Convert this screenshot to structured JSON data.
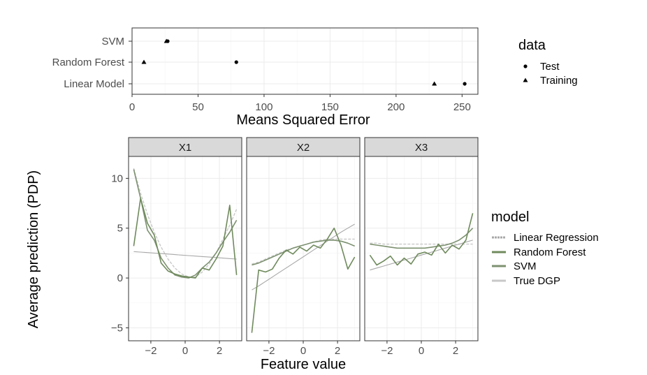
{
  "colors": {
    "Linear Regression": "#a8a8a8",
    "Random Forest": "#6f8a5c",
    "SVM": "#7d9170",
    "True DGP": "#c8c8c8"
  },
  "chart_data": [
    {
      "type": "scatter",
      "xlabel": "Means Squared Error",
      "categories": [
        "SVM",
        "Random Forest",
        "Linear Model"
      ],
      "xlim": [
        0,
        262
      ],
      "xticks": [
        0,
        50,
        100,
        150,
        200,
        250
      ],
      "legend": {
        "title": "data",
        "entries": [
          "Test",
          "Training"
        ],
        "placement": "right"
      },
      "series": [
        {
          "name": "Test",
          "shape": "circle",
          "values": [
            {
              "category": "SVM",
              "x": 27
            },
            {
              "category": "Random Forest",
              "x": 79
            },
            {
              "category": "Linear Model",
              "x": 252
            }
          ]
        },
        {
          "name": "Training",
          "shape": "triangle",
          "values": [
            {
              "category": "SVM",
              "x": 26
            },
            {
              "category": "Random Forest",
              "x": 9
            },
            {
              "category": "Linear Model",
              "x": 229
            }
          ]
        }
      ]
    },
    {
      "type": "line",
      "xlabel": "Feature value",
      "ylabel": "Average prediction (PDP)",
      "ylim": [
        -6.3,
        12.2
      ],
      "yticks": [
        -5,
        0,
        5,
        10
      ],
      "xlim": [
        -3.3,
        3.3
      ],
      "xticks": [
        -2,
        0,
        2
      ],
      "legend": {
        "title": "model",
        "entries": [
          "Linear Regression",
          "Random Forest",
          "SVM",
          "True DGP"
        ],
        "placement": "right"
      },
      "panels": [
        {
          "label": "X1",
          "x": [
            -3,
            -2.6,
            -2.2,
            -1.8,
            -1.4,
            -1,
            -0.6,
            -0.2,
            0.2,
            0.6,
            1,
            1.4,
            1.8,
            2.2,
            2.6,
            3
          ],
          "series": [
            {
              "name": "Linear Regression",
              "values": [
                2.65,
                2.6,
                2.55,
                2.5,
                2.45,
                2.4,
                2.35,
                2.3,
                2.25,
                2.2,
                2.15,
                2.1,
                2.05,
                2.0,
                1.95,
                1.9
              ]
            },
            {
              "name": "Random Forest",
              "values": [
                3.2,
                8.0,
                5.5,
                4.3,
                1.5,
                0.7,
                0.4,
                0.2,
                0.1,
                0.0,
                1.0,
                0.8,
                1.9,
                3.2,
                7.3,
                0.3
              ]
            },
            {
              "name": "SVM",
              "values": [
                10.9,
                8.0,
                4.8,
                3.8,
                2.0,
                1.0,
                0.3,
                0.1,
                0.0,
                0.3,
                1.0,
                1.6,
                2.5,
                3.6,
                4.6,
                5.8
              ]
            },
            {
              "name": "True DGP",
              "values": [
                11.0,
                8.5,
                6.4,
                4.6,
                3.1,
                1.9,
                1.0,
                0.4,
                0.1,
                0.1,
                0.6,
                1.4,
                2.5,
                3.9,
                5.3,
                6.9
              ]
            }
          ]
        },
        {
          "label": "X2",
          "x": [
            -3,
            -2.6,
            -2.2,
            -1.8,
            -1.4,
            -1,
            -0.6,
            -0.2,
            0.2,
            0.6,
            1,
            1.4,
            1.8,
            2.2,
            2.6,
            3
          ],
          "series": [
            {
              "name": "Linear Regression",
              "values": [
                -1.2,
                -0.8,
                -0.35,
                0.1,
                0.55,
                1.0,
                1.45,
                1.9,
                2.35,
                2.8,
                3.25,
                3.7,
                4.15,
                4.6,
                5.0,
                5.4
              ]
            },
            {
              "name": "Random Forest",
              "values": [
                -5.5,
                0.8,
                0.6,
                0.9,
                2.0,
                2.8,
                2.4,
                3.1,
                2.7,
                3.3,
                3.0,
                3.9,
                5.0,
                3.3,
                0.9,
                2.1
              ]
            },
            {
              "name": "SVM",
              "values": [
                1.3,
                1.5,
                1.8,
                2.1,
                2.4,
                2.7,
                3.0,
                3.2,
                3.4,
                3.6,
                3.7,
                3.8,
                3.8,
                3.7,
                3.5,
                3.2
              ]
            },
            {
              "name": "True DGP",
              "values": [
                1.4,
                1.6,
                1.9,
                2.2,
                2.5,
                2.8,
                3.0,
                3.2,
                3.4,
                3.6,
                3.8,
                3.9,
                3.9,
                3.9,
                3.9,
                3.9
              ]
            }
          ]
        },
        {
          "label": "X3",
          "x": [
            -3,
            -2.6,
            -2.2,
            -1.8,
            -1.4,
            -1,
            -0.6,
            -0.2,
            0.2,
            0.6,
            1,
            1.4,
            1.8,
            2.2,
            2.6,
            3
          ],
          "series": [
            {
              "name": "Linear Regression",
              "values": [
                0.8,
                1.0,
                1.2,
                1.4,
                1.6,
                1.8,
                2.0,
                2.2,
                2.4,
                2.6,
                2.8,
                3.0,
                3.2,
                3.4,
                3.6,
                3.8
              ]
            },
            {
              "name": "Random Forest",
              "values": [
                2.3,
                1.3,
                1.7,
                2.2,
                1.3,
                2.0,
                1.4,
                2.4,
                2.6,
                2.3,
                3.4,
                2.5,
                3.3,
                2.9,
                3.8,
                6.5
              ]
            },
            {
              "name": "SVM",
              "values": [
                3.4,
                3.3,
                3.2,
                3.1,
                3.0,
                3.0,
                3.0,
                3.0,
                3.0,
                3.1,
                3.2,
                3.3,
                3.5,
                3.8,
                4.3,
                5.0
              ]
            },
            {
              "name": "True DGP",
              "values": [
                3.5,
                3.5,
                3.4,
                3.4,
                3.4,
                3.4,
                3.4,
                3.4,
                3.4,
                3.4,
                3.4,
                3.4,
                3.4,
                3.4,
                3.4,
                3.4
              ]
            }
          ]
        }
      ]
    }
  ]
}
